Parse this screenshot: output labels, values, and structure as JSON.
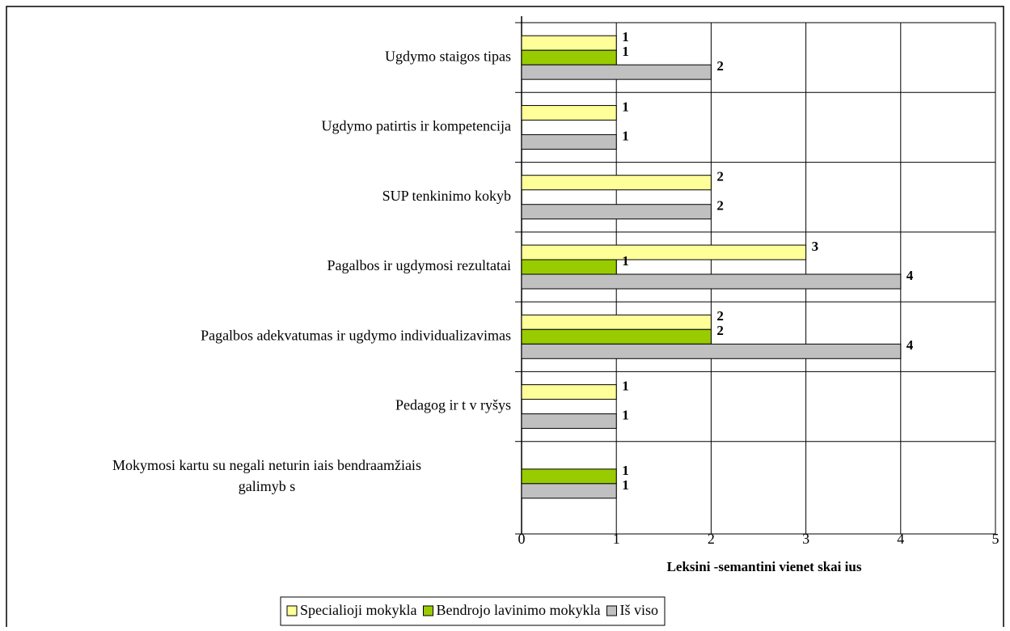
{
  "chart_data": {
    "type": "bar",
    "orientation": "horizontal",
    "categories": [
      "Ugdymo  staigos tipas",
      "Ugdymo patirtis ir kompetencija",
      "SUP tenkinimo kokyb",
      "Pagalbos ir ugdymosi rezultatai",
      "Pagalbos adekvatumas ir ugdymo individualizavimas",
      "Pedagog  ir t v  ryšys",
      [
        "Mokymosi kartu su negali  neturin iais bendraamžiais",
        "galimyb s"
      ]
    ],
    "series": [
      {
        "name": "Specialioji mokykla",
        "color": "#ffff99",
        "values": [
          1,
          1,
          2,
          3,
          2,
          1,
          null
        ]
      },
      {
        "name": "Bendrojo lavinimo mokykla",
        "color": "#99cc00",
        "values": [
          1,
          null,
          null,
          1,
          2,
          null,
          1
        ]
      },
      {
        "name": "Iš viso",
        "color": "#c0c0c0",
        "values": [
          2,
          1,
          2,
          4,
          4,
          1,
          1
        ]
      }
    ],
    "xlabel": "Leksini -semantini  vienet  skai ius",
    "xlim": [
      0,
      5
    ],
    "xticks": [
      0,
      1,
      2,
      3,
      4,
      5
    ],
    "grid": true,
    "legend": "bottom"
  }
}
